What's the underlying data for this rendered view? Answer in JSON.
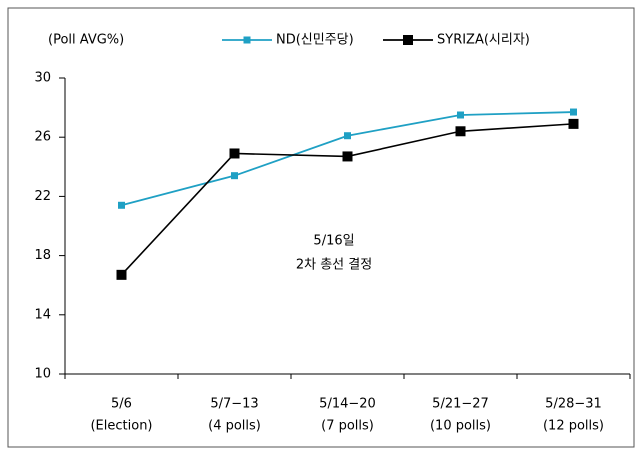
{
  "chart_data": {
    "type": "line",
    "y_axis_label": "(Poll AVG%)",
    "categories": [
      [
        "5/6",
        "(Election)"
      ],
      [
        "5/7−13",
        "(4 polls)"
      ],
      [
        "5/14−20",
        "(7 polls)"
      ],
      [
        "5/21−27",
        "(10 polls)"
      ],
      [
        "5/28−31",
        "(12 polls)"
      ]
    ],
    "series": [
      {
        "name": "ND(신민주당)",
        "color": "#1fa0c4",
        "values": [
          21.4,
          23.4,
          26.1,
          27.5,
          27.7
        ]
      },
      {
        "name": "SYRIZA(시리자)",
        "color": "#000000",
        "values": [
          16.7,
          24.9,
          24.7,
          26.4,
          26.9
        ]
      }
    ],
    "annotation": [
      "5/16일",
      "2차 총선 결정"
    ],
    "ylim": [
      10,
      30
    ],
    "yticks": [
      10,
      14,
      18,
      22,
      26,
      30
    ],
    "grid": false,
    "legend": "top"
  }
}
